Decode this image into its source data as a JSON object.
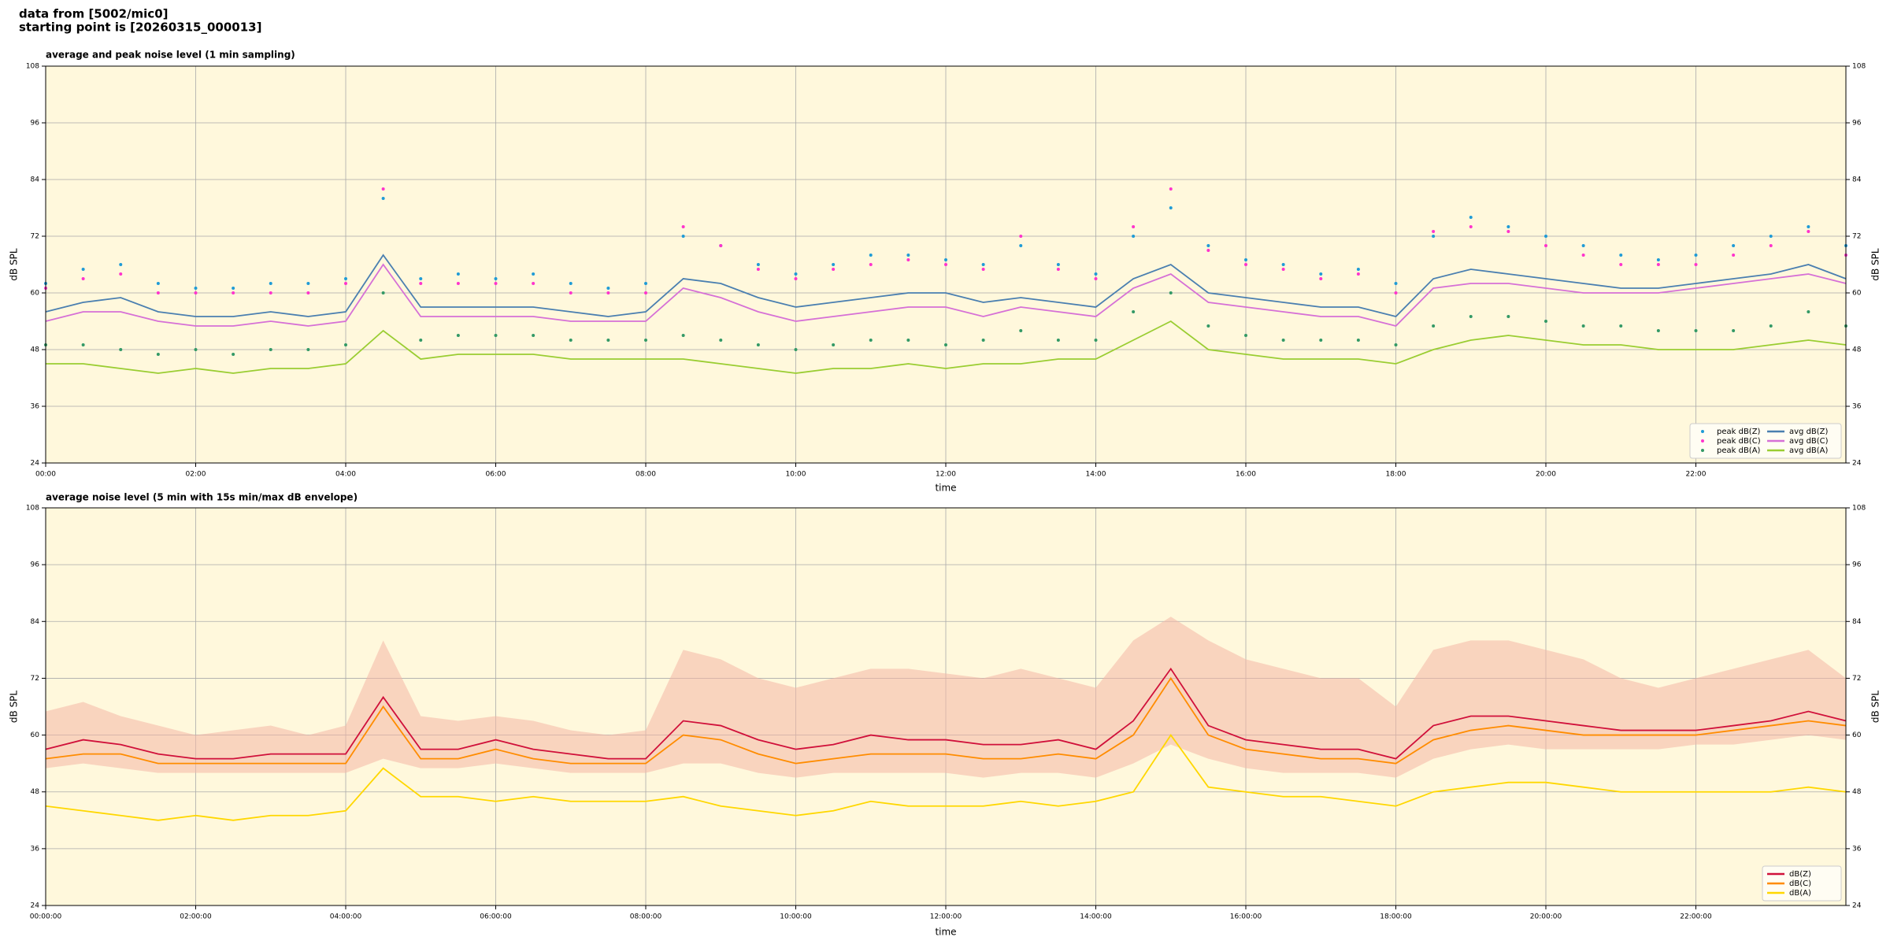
{
  "header": {
    "line1": "data from [5002/mic0]",
    "line2": "starting point is [20260315_000013]"
  },
  "chart_data": [
    {
      "type": "line",
      "title": "average and peak noise level (1 min sampling)",
      "xlabel": "time",
      "ylabel": "dB SPL",
      "background": "#fff8dc",
      "grid": true,
      "legend": "lower right",
      "legend_columns": 2,
      "xlim": [
        0,
        24
      ],
      "ylim": [
        24,
        108
      ],
      "xticks": [
        {
          "value": 0,
          "label": "00:00"
        },
        {
          "value": 2,
          "label": "02:00"
        },
        {
          "value": 4,
          "label": "04:00"
        },
        {
          "value": 6,
          "label": "06:00"
        },
        {
          "value": 8,
          "label": "08:00"
        },
        {
          "value": 10,
          "label": "10:00"
        },
        {
          "value": 12,
          "label": "12:00"
        },
        {
          "value": 14,
          "label": "14:00"
        },
        {
          "value": 16,
          "label": "16:00"
        },
        {
          "value": 18,
          "label": "18:00"
        },
        {
          "value": 20,
          "label": "20:00"
        },
        {
          "value": 22,
          "label": "22:00"
        }
      ],
      "yticks": [
        24,
        36,
        48,
        60,
        72,
        84,
        96,
        108
      ],
      "x": [
        0,
        0.5,
        1,
        1.5,
        2,
        2.5,
        3,
        3.5,
        4,
        4.5,
        5,
        5.5,
        6,
        6.5,
        7,
        7.5,
        8,
        8.5,
        9,
        9.5,
        10,
        10.5,
        11,
        11.5,
        12,
        12.5,
        13,
        13.5,
        14,
        14.5,
        15,
        15.5,
        16,
        16.5,
        17,
        17.5,
        18,
        18.5,
        19,
        19.5,
        20,
        20.5,
        21,
        21.5,
        22,
        22.5,
        23,
        23.5,
        24
      ],
      "series": [
        {
          "name": "peak dB(Z)",
          "type": "scatter",
          "color": "#1f9bd6",
          "values": [
            62,
            65,
            66,
            62,
            61,
            61,
            62,
            62,
            63,
            80,
            63,
            64,
            63,
            64,
            62,
            61,
            62,
            72,
            70,
            66,
            64,
            66,
            68,
            68,
            67,
            66,
            70,
            66,
            64,
            72,
            78,
            70,
            67,
            66,
            64,
            65,
            62,
            72,
            76,
            74,
            72,
            70,
            68,
            67,
            68,
            70,
            72,
            74,
            70
          ]
        },
        {
          "name": "peak dB(C)",
          "type": "scatter",
          "color": "#ff33cc",
          "values": [
            61,
            63,
            64,
            60,
            60,
            60,
            60,
            60,
            62,
            82,
            62,
            62,
            62,
            62,
            60,
            60,
            60,
            74,
            70,
            65,
            63,
            65,
            66,
            67,
            66,
            65,
            72,
            65,
            63,
            74,
            82,
            69,
            66,
            65,
            63,
            64,
            60,
            73,
            74,
            73,
            70,
            68,
            66,
            66,
            66,
            68,
            70,
            73,
            68
          ]
        },
        {
          "name": "peak dB(A)",
          "type": "scatter",
          "color": "#339966",
          "values": [
            49,
            49,
            48,
            47,
            48,
            47,
            48,
            48,
            49,
            60,
            50,
            51,
            51,
            51,
            50,
            50,
            50,
            51,
            50,
            49,
            48,
            49,
            50,
            50,
            49,
            50,
            52,
            50,
            50,
            56,
            60,
            53,
            51,
            50,
            50,
            50,
            49,
            53,
            55,
            55,
            54,
            53,
            53,
            52,
            52,
            52,
            53,
            56,
            53
          ]
        },
        {
          "name": "avg dB(Z)",
          "type": "line",
          "color": "#4a7fb0",
          "values": [
            56,
            58,
            59,
            56,
            55,
            55,
            56,
            55,
            56,
            68,
            57,
            57,
            57,
            57,
            56,
            55,
            56,
            63,
            62,
            59,
            57,
            58,
            59,
            60,
            60,
            58,
            59,
            58,
            57,
            63,
            66,
            60,
            59,
            58,
            57,
            57,
            55,
            63,
            65,
            64,
            63,
            62,
            61,
            61,
            62,
            63,
            64,
            66,
            63
          ]
        },
        {
          "name": "avg dB(C)",
          "type": "line",
          "color": "#d670d6",
          "values": [
            54,
            56,
            56,
            54,
            53,
            53,
            54,
            53,
            54,
            66,
            55,
            55,
            55,
            55,
            54,
            54,
            54,
            61,
            59,
            56,
            54,
            55,
            56,
            57,
            57,
            55,
            57,
            56,
            55,
            61,
            64,
            58,
            57,
            56,
            55,
            55,
            53,
            61,
            62,
            62,
            61,
            60,
            60,
            60,
            61,
            62,
            63,
            64,
            62
          ]
        },
        {
          "name": "avg dB(A)",
          "type": "line",
          "color": "#9acd32",
          "values": [
            45,
            45,
            44,
            43,
            44,
            43,
            44,
            44,
            45,
            52,
            46,
            47,
            47,
            47,
            46,
            46,
            46,
            46,
            45,
            44,
            43,
            44,
            44,
            45,
            44,
            45,
            45,
            46,
            46,
            50,
            54,
            48,
            47,
            46,
            46,
            46,
            45,
            48,
            50,
            51,
            50,
            49,
            49,
            48,
            48,
            48,
            49,
            50,
            49
          ]
        }
      ]
    },
    {
      "type": "line",
      "title": "average noise level (5 min with 15s min/max dB envelope)",
      "xlabel": "time",
      "ylabel": "dB SPL",
      "background": "#fff8dc",
      "grid": true,
      "legend": "lower right",
      "legend_columns": 1,
      "xlim": [
        0,
        24
      ],
      "ylim": [
        24,
        108
      ],
      "xticks": [
        {
          "value": 0,
          "label": "00:00:00"
        },
        {
          "value": 2,
          "label": "02:00:00"
        },
        {
          "value": 4,
          "label": "04:00:00"
        },
        {
          "value": 6,
          "label": "06:00:00"
        },
        {
          "value": 8,
          "label": "08:00:00"
        },
        {
          "value": 10,
          "label": "10:00:00"
        },
        {
          "value": 12,
          "label": "12:00:00"
        },
        {
          "value": 14,
          "label": "14:00:00"
        },
        {
          "value": 16,
          "label": "16:00:00"
        },
        {
          "value": 18,
          "label": "18:00:00"
        },
        {
          "value": 20,
          "label": "20:00:00"
        },
        {
          "value": 22,
          "label": "22:00:00"
        }
      ],
      "yticks": [
        24,
        36,
        48,
        60,
        72,
        84,
        96,
        108
      ],
      "x": [
        0,
        0.5,
        1,
        1.5,
        2,
        2.5,
        3,
        3.5,
        4,
        4.5,
        5,
        5.5,
        6,
        6.5,
        7,
        7.5,
        8,
        8.5,
        9,
        9.5,
        10,
        10.5,
        11,
        11.5,
        12,
        12.5,
        13,
        13.5,
        14,
        14.5,
        15,
        15.5,
        16,
        16.5,
        17,
        17.5,
        18,
        18.5,
        19,
        19.5,
        20,
        20.5,
        21,
        21.5,
        22,
        22.5,
        23,
        23.5,
        24
      ],
      "series": [
        {
          "type": "band",
          "color": "#f4b6a6",
          "high": [
            65,
            67,
            64,
            62,
            60,
            61,
            62,
            60,
            62,
            80,
            64,
            63,
            64,
            63,
            61,
            60,
            61,
            78,
            76,
            72,
            70,
            72,
            74,
            74,
            73,
            72,
            74,
            72,
            70,
            80,
            85,
            80,
            76,
            74,
            72,
            72,
            66,
            78,
            80,
            80,
            78,
            76,
            72,
            70,
            72,
            74,
            76,
            78,
            72
          ],
          "low": [
            53,
            54,
            53,
            52,
            52,
            52,
            52,
            52,
            52,
            55,
            53,
            53,
            54,
            53,
            52,
            52,
            52,
            54,
            54,
            52,
            51,
            52,
            52,
            52,
            52,
            51,
            52,
            52,
            51,
            54,
            58,
            55,
            53,
            52,
            52,
            52,
            51,
            55,
            57,
            58,
            57,
            57,
            57,
            57,
            58,
            58,
            59,
            60,
            59
          ]
        },
        {
          "name": "dB(Z)",
          "type": "line",
          "color": "#d0103a",
          "values": [
            57,
            59,
            58,
            56,
            55,
            55,
            56,
            56,
            56,
            68,
            57,
            57,
            59,
            57,
            56,
            55,
            55,
            63,
            62,
            59,
            57,
            58,
            60,
            59,
            59,
            58,
            58,
            59,
            57,
            63,
            74,
            62,
            59,
            58,
            57,
            57,
            55,
            62,
            64,
            64,
            63,
            62,
            61,
            61,
            61,
            62,
            63,
            65,
            63
          ]
        },
        {
          "name": "dB(C)",
          "type": "line",
          "color": "#ff8c00",
          "values": [
            55,
            56,
            56,
            54,
            54,
            54,
            54,
            54,
            54,
            66,
            55,
            55,
            57,
            55,
            54,
            54,
            54,
            60,
            59,
            56,
            54,
            55,
            56,
            56,
            56,
            55,
            55,
            56,
            55,
            60,
            72,
            60,
            57,
            56,
            55,
            55,
            54,
            59,
            61,
            62,
            61,
            60,
            60,
            60,
            60,
            61,
            62,
            63,
            62
          ]
        },
        {
          "name": "dB(A)",
          "type": "line",
          "color": "#ffd700",
          "values": [
            45,
            44,
            43,
            42,
            43,
            42,
            43,
            43,
            44,
            53,
            47,
            47,
            46,
            47,
            46,
            46,
            46,
            47,
            45,
            44,
            43,
            44,
            46,
            45,
            45,
            45,
            46,
            45,
            46,
            48,
            60,
            49,
            48,
            47,
            47,
            46,
            45,
            48,
            49,
            50,
            50,
            49,
            48,
            48,
            48,
            48,
            48,
            49,
            48
          ]
        }
      ]
    }
  ]
}
